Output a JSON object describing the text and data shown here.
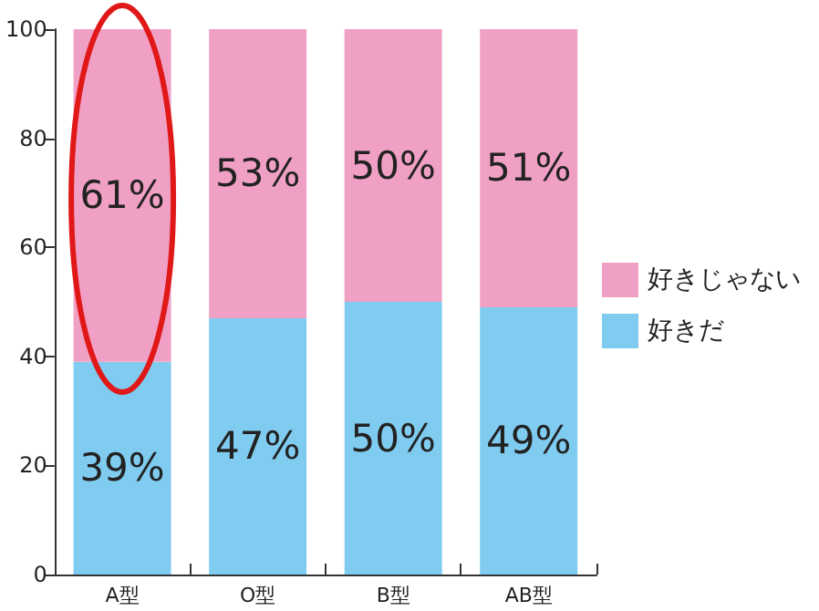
{
  "chart_data": {
    "type": "bar",
    "stacked": true,
    "categories": [
      "A型",
      "O型",
      "B型",
      "AB型"
    ],
    "series": [
      {
        "name": "好きだ",
        "color": "#80ccf0",
        "values": [
          39,
          47,
          50,
          49
        ],
        "value_labels": [
          "39%",
          "47%",
          "50%",
          "49%"
        ]
      },
      {
        "name": "好きじゃない",
        "color": "#f0a0c4",
        "values": [
          61,
          53,
          50,
          51
        ],
        "value_labels": [
          "61%",
          "53%",
          "50%",
          "51%"
        ]
      }
    ],
    "ylim": [
      0,
      100
    ],
    "yticks": [
      0,
      20,
      40,
      60,
      80,
      100
    ],
    "grid": false,
    "legend": "right"
  }
}
